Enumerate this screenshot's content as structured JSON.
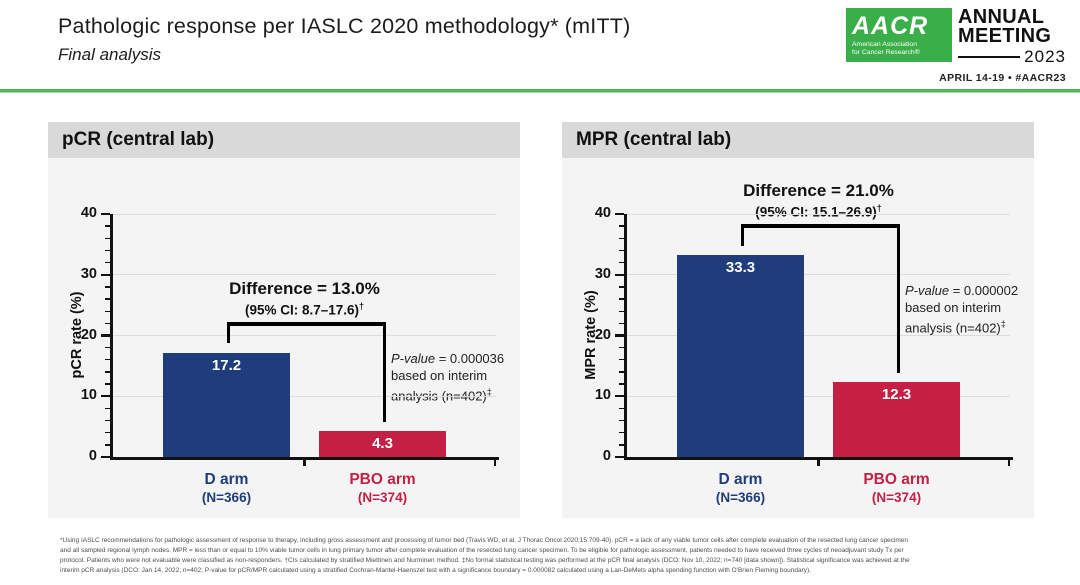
{
  "slide": {
    "title": "Pathologic response per IASLC 2020 methodology* (mITT)",
    "subtitle": "Final analysis",
    "logo": {
      "acronym": "AACR",
      "org_line1": "American Association",
      "org_line2": "for Cancer Research®",
      "event_line1": "ANNUAL",
      "event_line2": "MEETING",
      "event_year": "2023",
      "date_line": "APRIL 14-19 • #AACR23",
      "green": "#3aae49"
    }
  },
  "colors": {
    "d_arm_blue": "#1f3d7c",
    "pbo_arm_red": "#c41f45",
    "panel_bg": "#f4f4f4",
    "panel_header_bg": "#d9d9d9",
    "divider_green": "#54b45a",
    "gridline": "#dcdcdc"
  },
  "chart_data": [
    {
      "type": "bar",
      "title": "pCR (central lab)",
      "ylabel": "pCR rate (%)",
      "ylim": [
        0,
        40
      ],
      "yticks": [
        0,
        10,
        20,
        30,
        40
      ],
      "minor_tick_step": 2,
      "grid": true,
      "categories": [
        "D arm",
        "PBO arm"
      ],
      "category_sublabels": [
        "(N=366)",
        "(N=374)"
      ],
      "values": [
        17.2,
        4.3
      ],
      "bar_colors": [
        "#1f3d7c",
        "#c41f45"
      ],
      "difference_label": "Difference = 13.0%",
      "ci_label": "(95% CI: 8.7–17.6)",
      "ci_sup": "†",
      "pvalue_italic": "P-value",
      "pvalue_eq": " = 0.000036",
      "pvalue_line2": "based on interim",
      "pvalue_line3": "analysis (n=402)",
      "pvalue_line3_sup": "‡",
      "bracket_y": 22.2,
      "pvalue_y": 17.6
    },
    {
      "type": "bar",
      "title": "MPR (central lab)",
      "ylabel": "MPR rate (%)",
      "ylim": [
        0,
        40
      ],
      "yticks": [
        0,
        10,
        20,
        30,
        40
      ],
      "minor_tick_step": 2,
      "grid": true,
      "categories": [
        "D arm",
        "PBO arm"
      ],
      "category_sublabels": [
        "(N=366)",
        "(N=374)"
      ],
      "values": [
        33.3,
        12.3
      ],
      "bar_colors": [
        "#1f3d7c",
        "#c41f45"
      ],
      "difference_label": "Difference = 21.0%",
      "ci_label": "(95% CI: 15.1–26.9)",
      "ci_sup": "†",
      "pvalue_italic": "P-value",
      "pvalue_eq": " = 0.000002",
      "pvalue_line2": "based on interim",
      "pvalue_line3": "analysis (n=402)",
      "pvalue_line3_sup": "‡",
      "bracket_y": 38.3,
      "pvalue_y": 28.8
    }
  ],
  "footnote": {
    "lines": [
      "*Using IASLC recommendations for pathologic assessment of response to therapy, including gross assessment and processing of tumor bed (Travis WD, et al. J Thorac Oncol 2020;15:709-40). pCR = a lack of any viable tumor cells after complete evaluation of the resected lung cancer specimen",
      "and all sampled regional lymph nodes. MPR = less than or equal to 10% viable tumor cells in lung primary tumor after complete evaluation of the resected lung cancer specimen. To be eligible for pathologic assessment, patients needed to have received three cycles of neoadjuvant study Tx per",
      "protocol. Patients who were not evaluable were classified as non-responders. †CIs calculated by stratified Miettinen and Nurminen method. ‡No formal statistical testing was performed at the pCR final analysis (DCO: Nov 10, 2022; n=740 [data shown]). Statistical significance was achieved at the",
      "interim pCR analysis (DCO: Jan 14, 2022; n=402; P-value for pCR/MPR calculated using a stratified Cochran-Mantel-Haenszel test with a significance boundary = 0.000082 calculated using a Lan-DeMets alpha spending function with O'Brien Fleming boundary)."
    ]
  }
}
